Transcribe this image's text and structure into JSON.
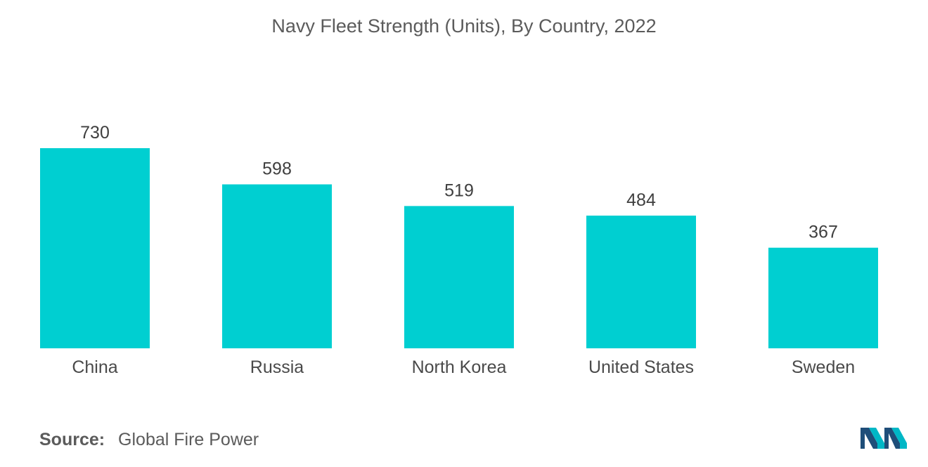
{
  "chart_data": {
    "type": "bar",
    "title": "Navy Fleet Strength (Units), By Country, 2022",
    "categories": [
      "China",
      "Russia",
      "North Korea",
      "United States",
      "Sweden"
    ],
    "values": [
      730,
      598,
      519,
      484,
      367
    ],
    "data_labels": [
      "730",
      "598",
      "519",
      "484",
      "367"
    ],
    "ylim": [
      0,
      730
    ],
    "grid": false,
    "bar_color": "#00cfd1",
    "xlabel": "",
    "ylabel": ""
  },
  "source": {
    "label": "Source:",
    "text": "Global Fire Power"
  },
  "logo": {
    "icon": "mordor-intelligence-logo-icon",
    "colors": [
      "#1f4e79",
      "#00b7c6"
    ]
  }
}
